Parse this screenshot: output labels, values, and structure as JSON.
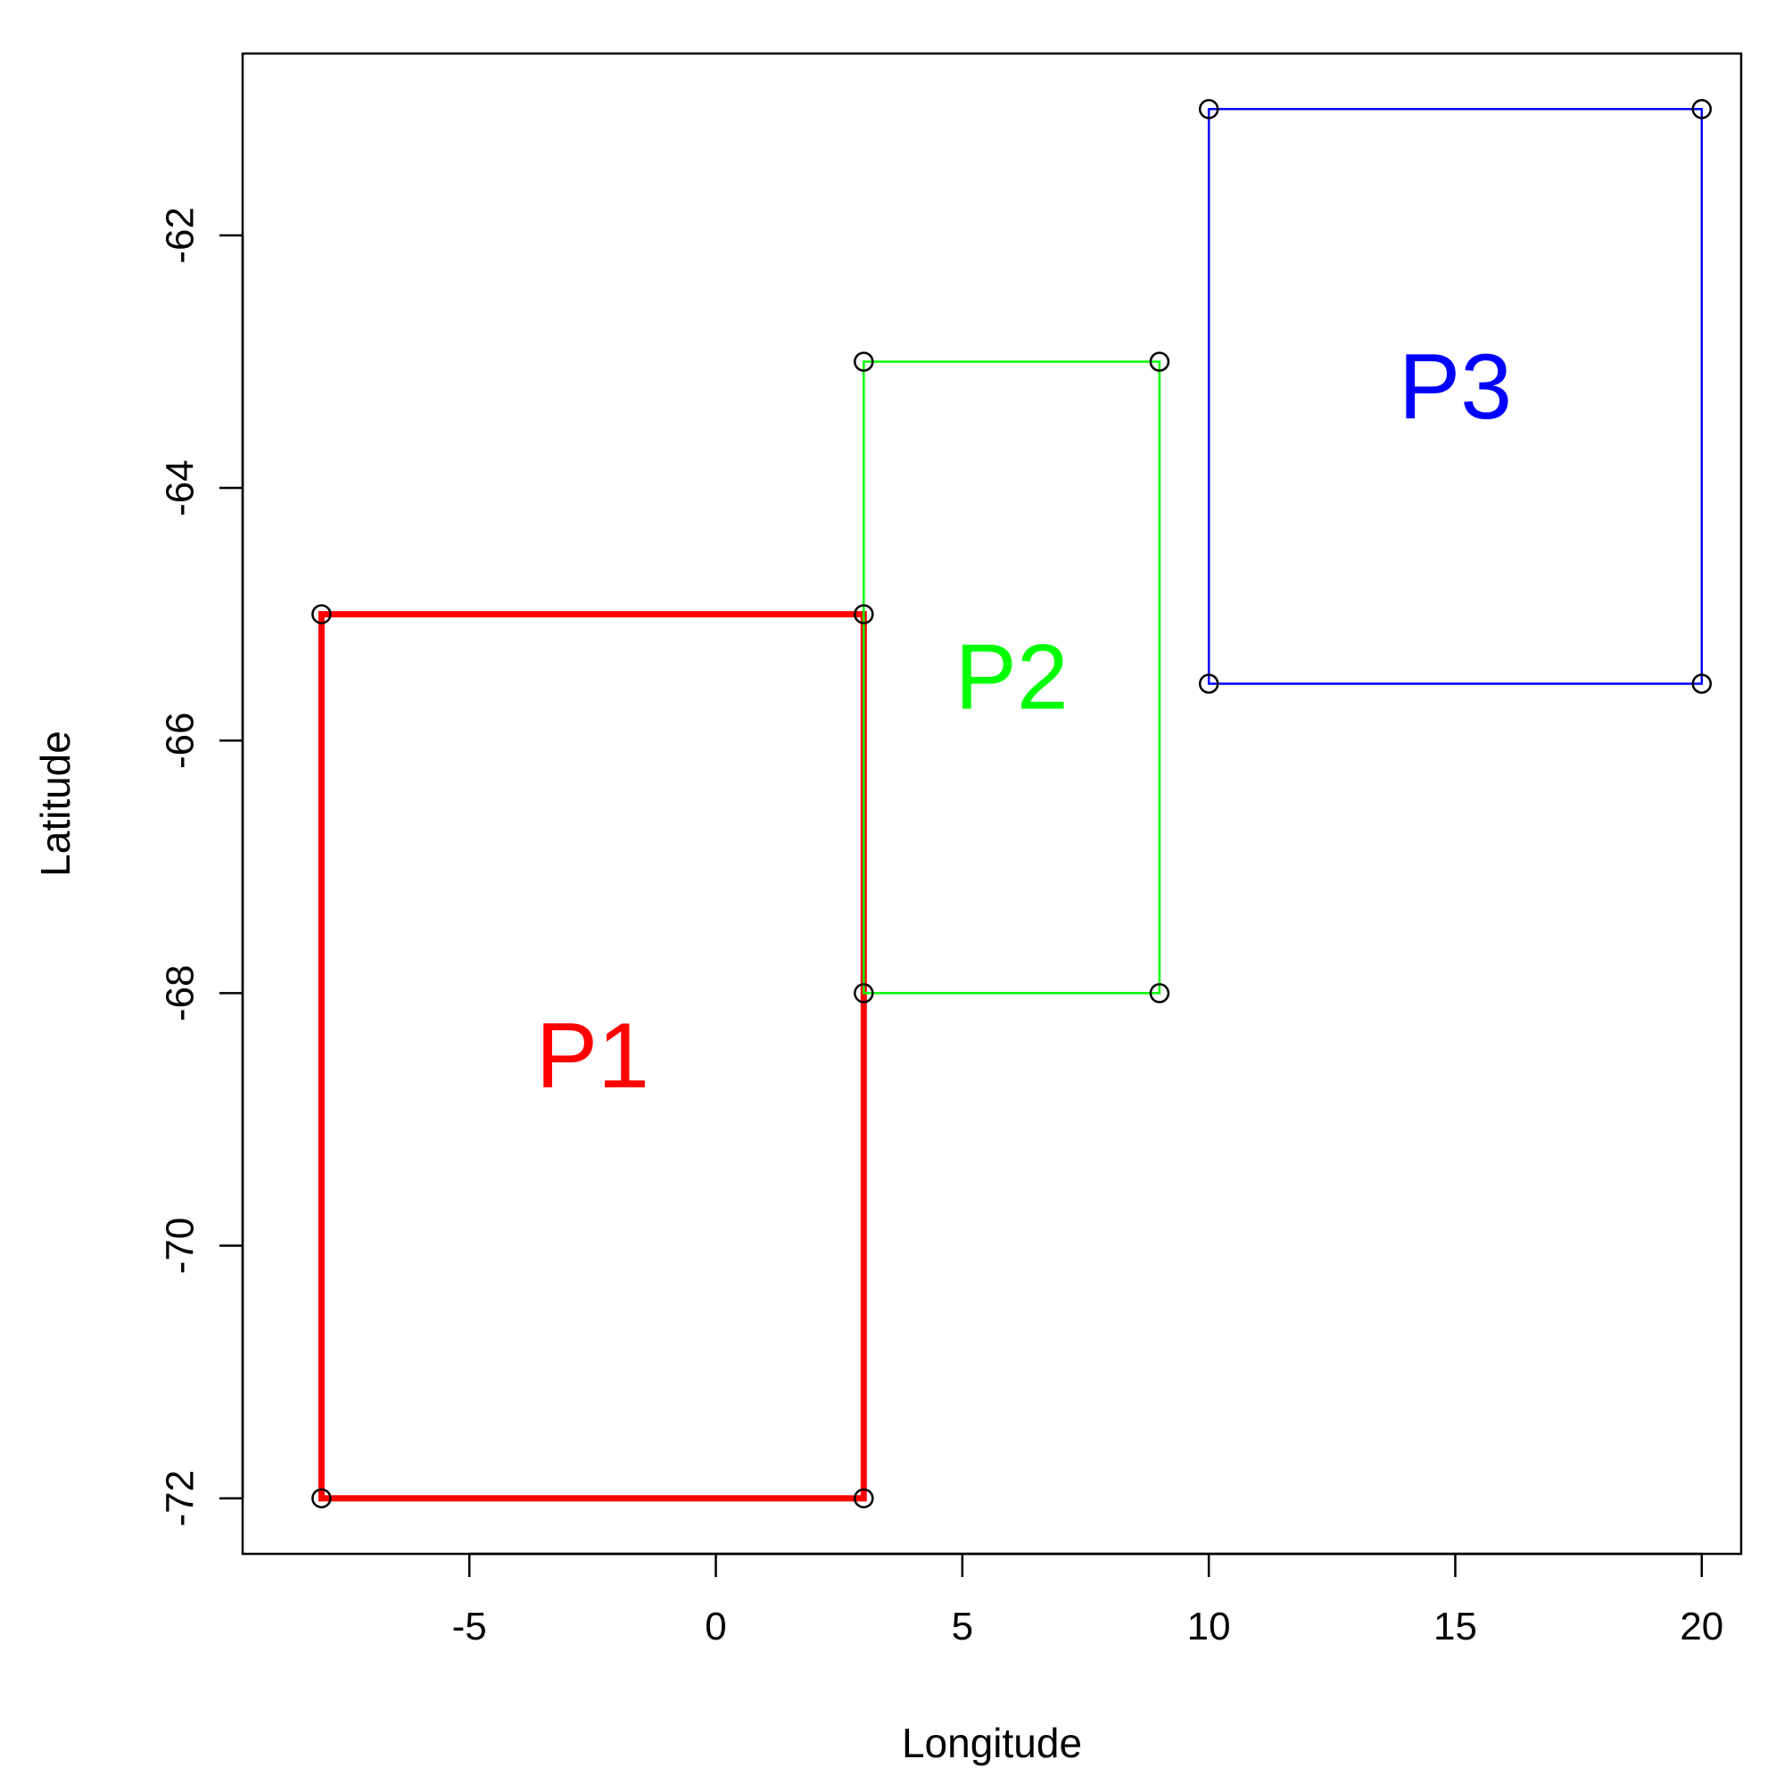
{
  "chart_data": {
    "type": "scatter",
    "title": "",
    "xlabel": "Longitude",
    "ylabel": "Latitude",
    "xlim": [
      -9.6,
      20.8
    ],
    "ylim": [
      -72.44,
      -60.56
    ],
    "x_ticks": [
      -5,
      0,
      5,
      10,
      15,
      20
    ],
    "y_ticks": [
      -72,
      -70,
      -68,
      -66,
      -64,
      -62
    ],
    "x_tick_labels": [
      "-5",
      "0",
      "5",
      "10",
      "15",
      "20"
    ],
    "y_tick_labels": [
      "-72",
      "-70",
      "-68",
      "-66",
      "-64",
      "-62"
    ],
    "grid": false,
    "legend": "none",
    "polygons": [
      {
        "label": "P1",
        "color": "#ff0000",
        "label_pos": [
          -2.5,
          -68.5
        ],
        "vertices": [
          [
            -8,
            -65
          ],
          [
            3,
            -65
          ],
          [
            3,
            -72
          ],
          [
            -8,
            -72
          ]
        ]
      },
      {
        "label": "P2",
        "color": "#00ff00",
        "label_pos": [
          6,
          -65.5
        ],
        "vertices": [
          [
            3,
            -63
          ],
          [
            9,
            -63
          ],
          [
            9,
            -68
          ],
          [
            3,
            -68
          ]
        ]
      },
      {
        "label": "P3",
        "color": "#0000ff",
        "label_pos": [
          15,
          -63.2
        ],
        "vertices": [
          [
            10,
            -61
          ],
          [
            20,
            -61
          ],
          [
            20,
            -65.55
          ],
          [
            10,
            -65.55
          ]
        ]
      }
    ],
    "point_color": "#000000"
  }
}
